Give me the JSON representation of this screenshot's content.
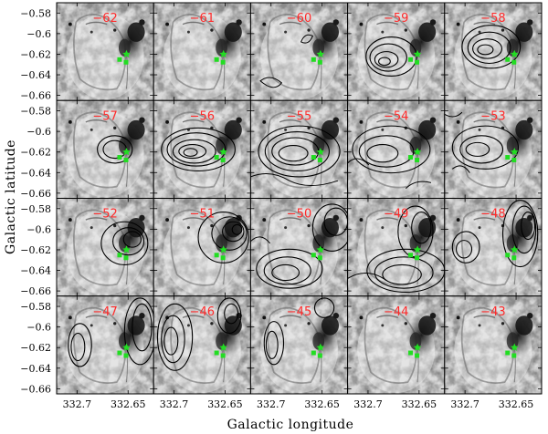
{
  "figure": {
    "ylabel": "Galactic latitude",
    "xlabel": "Galactic longitude",
    "label_color": "#ff2a2a",
    "marker_color": "#22dd22",
    "contour_color": "#000000"
  },
  "chart_data": {
    "type": "contour-map-grid",
    "rows": 4,
    "cols": 5,
    "velocity_labels": [
      "−62",
      "−61",
      "−60",
      "−59",
      "−58",
      "−57",
      "−56",
      "−55",
      "−54",
      "−53",
      "−52",
      "−51",
      "−50",
      "−49",
      "−48",
      "−47",
      "−46",
      "−45",
      "−44",
      "−43"
    ],
    "velocities_kms": [
      -62,
      -61,
      -60,
      -59,
      -58,
      -57,
      -56,
      -55,
      -54,
      -53,
      -52,
      -51,
      -50,
      -49,
      -48,
      -47,
      -46,
      -45,
      -44,
      -43
    ],
    "y_ticks": [
      "−0.58",
      "−0.6",
      "−0.62",
      "−0.64",
      "−0.66"
    ],
    "y_tick_values": [
      -0.58,
      -0.6,
      -0.62,
      -0.64,
      -0.66
    ],
    "x_ticks": [
      "332.7",
      "332.65"
    ],
    "x_tick_values": [
      332.7,
      332.65
    ],
    "xlim": [
      332.72,
      332.625
    ],
    "ylim": [
      -0.665,
      -0.57
    ]
  }
}
